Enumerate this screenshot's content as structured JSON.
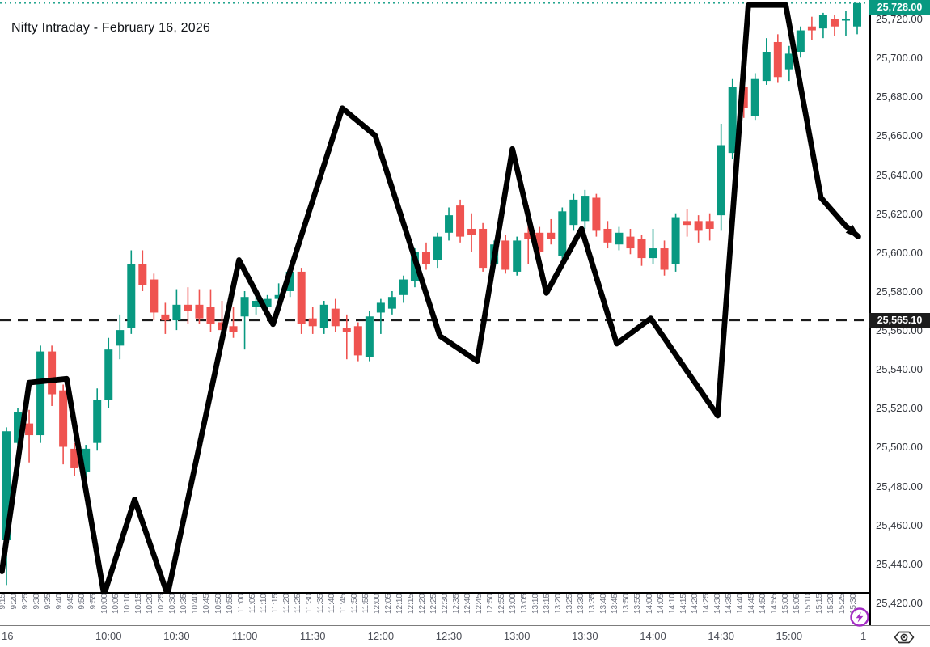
{
  "title": "Nifty Intraday - February 16, 2026",
  "colors": {
    "up": "#089981",
    "down": "#ef5350",
    "overlay_line": "#000000",
    "dashed_level": "#1b1b1b",
    "last_tag_bg": "#089981",
    "level_tag_bg": "#1c1c1c",
    "axis_text": "#33363d",
    "minor_label_text": "#6f7380",
    "flash_icon": "#a32cc4",
    "eye_icon": "#2f2f2f"
  },
  "y_axis": {
    "top_price": 25729.6,
    "bottom_price": 25425.4,
    "ticks": [
      {
        "price": 25720,
        "label": "25,720.00"
      },
      {
        "price": 25700,
        "label": "25,700.00"
      },
      {
        "price": 25680,
        "label": "25,680.00"
      },
      {
        "price": 25660,
        "label": "25,660.00"
      },
      {
        "price": 25640,
        "label": "25,640.00"
      },
      {
        "price": 25620,
        "label": "25,620.00"
      },
      {
        "price": 25600,
        "label": "25,600.00"
      },
      {
        "price": 25580,
        "label": "25,580.00"
      },
      {
        "price": 25560,
        "label": "25,560.00"
      },
      {
        "price": 25540,
        "label": "25,540.00"
      },
      {
        "price": 25520,
        "label": "25,520.00"
      },
      {
        "price": 25500,
        "label": "25,500.00"
      },
      {
        "price": 25480,
        "label": "25,480.00"
      },
      {
        "price": 25460,
        "label": "25,460.00"
      },
      {
        "price": 25440,
        "label": "25,440.00"
      },
      {
        "price": 25420,
        "label": "25,420.00"
      }
    ],
    "last_price_tag": {
      "price": 25728.0,
      "label": "25,728.00"
    },
    "level_tag": {
      "price": 25565.1,
      "label": "25,565.10"
    }
  },
  "x_axis": {
    "major_labels": [
      {
        "label": "16",
        "bar": 0,
        "align": "left",
        "dx": -6
      },
      {
        "label": "10:00",
        "bar": 9
      },
      {
        "label": "10:30",
        "bar": 15
      },
      {
        "label": "11:00",
        "bar": 21
      },
      {
        "label": "11:30",
        "bar": 27
      },
      {
        "label": "12:00",
        "bar": 33
      },
      {
        "label": "12:30",
        "bar": 39
      },
      {
        "label": "13:00",
        "bar": 45
      },
      {
        "label": "13:30",
        "bar": 51
      },
      {
        "label": "14:00",
        "bar": 57
      },
      {
        "label": "14:30",
        "bar": 63
      },
      {
        "label": "15:00",
        "bar": 69
      },
      {
        "label": "1",
        "bar": 75,
        "align": "left",
        "dx": 4
      }
    ]
  },
  "chart_data": {
    "type": "candlestick",
    "title": "Nifty Intraday - February 16, 2026",
    "timeframe_minutes": 5,
    "grid": false,
    "ylim": [
      25425.4,
      25729.6
    ],
    "last_price_line": 25728.0,
    "dashed_level": 25565.1,
    "times": [
      "9:15",
      "9:20",
      "9:25",
      "9:30",
      "9:35",
      "9:40",
      "9:45",
      "9:50",
      "9:55",
      "10:00",
      "10:05",
      "10:10",
      "10:15",
      "10:20",
      "10:25",
      "10:30",
      "10:35",
      "10:40",
      "10:45",
      "10:50",
      "10:55",
      "11:00",
      "11:05",
      "11:10",
      "11:15",
      "11:20",
      "11:25",
      "11:30",
      "11:35",
      "11:40",
      "11:45",
      "11:50",
      "11:55",
      "12:00",
      "12:05",
      "12:10",
      "12:15",
      "12:20",
      "12:25",
      "12:30",
      "12:35",
      "12:40",
      "12:45",
      "12:50",
      "12:55",
      "13:00",
      "13:05",
      "13:10",
      "13:15",
      "13:20",
      "13:25",
      "13:30",
      "13:35",
      "13:40",
      "13:45",
      "13:50",
      "13:55",
      "14:00",
      "14:05",
      "14:10",
      "14:15",
      "14:20",
      "14:25",
      "14:30",
      "14:35",
      "14:40",
      "14:45",
      "14:50",
      "14:55",
      "15:00",
      "15:05",
      "15:10",
      "15:15",
      "15:20",
      "15:25",
      "15:30"
    ],
    "ohlc": [
      [
        25452,
        25510,
        25429,
        25508
      ],
      [
        25502,
        25520,
        25494,
        25518
      ],
      [
        25512,
        25519,
        25492,
        25506
      ],
      [
        25506,
        25552,
        25502,
        25549
      ],
      [
        25549,
        25552,
        25521,
        25527
      ],
      [
        25529,
        25532,
        25491,
        25500
      ],
      [
        25499,
        25502,
        25485,
        25489
      ],
      [
        25487,
        25501,
        25482,
        25499
      ],
      [
        25502,
        25530,
        25498,
        25524
      ],
      [
        25524,
        25556,
        25520,
        25550
      ],
      [
        25552,
        25568,
        25545,
        25560
      ],
      [
        25561,
        25601,
        25558,
        25594
      ],
      [
        25594,
        25601,
        25580,
        25583
      ],
      [
        25586,
        25589,
        25565,
        25569
      ],
      [
        25568,
        25574,
        25558,
        25565
      ],
      [
        25565,
        25581,
        25560,
        25573
      ],
      [
        25573,
        25582,
        25563,
        25570
      ],
      [
        25573,
        25581,
        25563,
        25566
      ],
      [
        25572,
        25581,
        25559,
        25563
      ],
      [
        25564,
        25575,
        25556,
        25560
      ],
      [
        25562,
        25572,
        25556,
        25559
      ],
      [
        25567,
        25580,
        25550,
        25577
      ],
      [
        25572,
        25578,
        25568,
        25575
      ],
      [
        25572,
        25578,
        25566,
        25576
      ],
      [
        25576,
        25584,
        25571,
        25578
      ],
      [
        25580,
        25592,
        25577,
        25590
      ],
      [
        25590,
        25592,
        25558,
        25563
      ],
      [
        25566,
        25572,
        25558,
        25562
      ],
      [
        25561,
        25575,
        25558,
        25573
      ],
      [
        25571,
        25576,
        25559,
        25562
      ],
      [
        25561,
        25568,
        25545,
        25559
      ],
      [
        25562,
        25564,
        25544,
        25547
      ],
      [
        25546,
        25570,
        25544,
        25567
      ],
      [
        25569,
        25576,
        25558,
        25574
      ],
      [
        25571,
        25580,
        25568,
        25577
      ],
      [
        25578,
        25588,
        25574,
        25586
      ],
      [
        25585,
        25602,
        25582,
        25600
      ],
      [
        25600,
        25605,
        25591,
        25594
      ],
      [
        25596,
        25610,
        25592,
        25608
      ],
      [
        25610,
        25623,
        25606,
        25619
      ],
      [
        25624,
        25627,
        25605,
        25608
      ],
      [
        25612,
        25620,
        25600,
        25609
      ],
      [
        25612,
        25615,
        25590,
        25592
      ],
      [
        25594,
        25606,
        25590,
        25604
      ],
      [
        25606,
        25609,
        25589,
        25591
      ],
      [
        25590,
        25608,
        25588,
        25606
      ],
      [
        25610,
        25624,
        25594,
        25607
      ],
      [
        25610,
        25613,
        25596,
        25600
      ],
      [
        25610,
        25617,
        25604,
        25607
      ],
      [
        25598,
        25623,
        25596,
        25621
      ],
      [
        25614,
        25630,
        25611,
        25627
      ],
      [
        25616,
        25632,
        25612,
        25629
      ],
      [
        25628,
        25630,
        25608,
        25611
      ],
      [
        25612,
        25616,
        25602,
        25605
      ],
      [
        25604,
        25613,
        25601,
        25610
      ],
      [
        25608,
        25612,
        25599,
        25602
      ],
      [
        25607,
        25609,
        25593,
        25597
      ],
      [
        25597,
        25612,
        25594,
        25602
      ],
      [
        25602,
        25606,
        25588,
        25591
      ],
      [
        25594,
        25620,
        25590,
        25618
      ],
      [
        25616,
        25622,
        25608,
        25614
      ],
      [
        25616,
        25619,
        25605,
        25611
      ],
      [
        25616,
        25620,
        25606,
        25612
      ],
      [
        25619,
        25666,
        25611,
        25655
      ],
      [
        25651,
        25689,
        25648,
        25685
      ],
      [
        25685,
        25689,
        25669,
        25674
      ],
      [
        25670,
        25692,
        25668,
        25689
      ],
      [
        25688,
        25710,
        25686,
        25703
      ],
      [
        25708,
        25712,
        25687,
        25690
      ],
      [
        25694,
        25706,
        25688,
        25702
      ],
      [
        25703,
        25716,
        25700,
        25714
      ],
      [
        25716,
        25721,
        25709,
        25714
      ],
      [
        25715,
        25723,
        25710,
        25722
      ],
      [
        25720,
        25722,
        25711,
        25716
      ],
      [
        25719,
        25724,
        25711,
        25720
      ],
      [
        25716,
        25728,
        25712,
        25728
      ]
    ],
    "overlay_line": {
      "name": "zigzag-overlay",
      "arrow_end": true,
      "points": [
        [
          -0.4,
          25436
        ],
        [
          2,
          25533
        ],
        [
          5.3,
          25535
        ],
        [
          8.6,
          25424
        ],
        [
          11.3,
          25473
        ],
        [
          14.2,
          25424
        ],
        [
          20.5,
          25596
        ],
        [
          23.5,
          25563
        ],
        [
          29.6,
          25674
        ],
        [
          32.5,
          25660
        ],
        [
          38.2,
          25557
        ],
        [
          41.5,
          25544
        ],
        [
          44.6,
          25653
        ],
        [
          47.6,
          25579
        ],
        [
          50.7,
          25612
        ],
        [
          53.8,
          25553
        ],
        [
          56.8,
          25566
        ],
        [
          62.7,
          25516
        ],
        [
          65.4,
          25727
        ],
        [
          68.7,
          25727
        ],
        [
          71.8,
          25628
        ],
        [
          73.9,
          25614
        ],
        [
          75.1,
          25608
        ]
      ]
    }
  },
  "footer": {
    "icons": [
      {
        "name": "lightning-circle-icon"
      },
      {
        "name": "eye-icon"
      }
    ]
  }
}
